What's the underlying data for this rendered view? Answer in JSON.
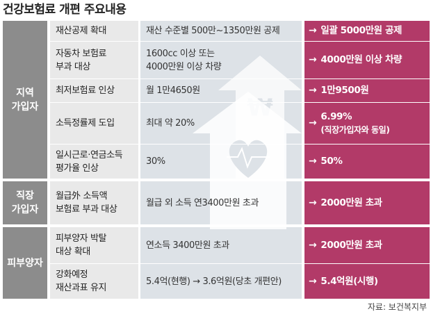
{
  "title": "건강보험료 개편 주요내용",
  "groups": [
    "지역\n가입자",
    "직장\n가입자",
    "피부양자"
  ],
  "rows": [
    {
      "item": "재산공제 확대",
      "current": "재산 수준별 500만~1350만원 공제",
      "new": "일괄 5000만원 공제"
    },
    {
      "item": "자동차 보험료\n부과 대상",
      "current": "1600cc 이상 또는\n4000만원 이상 차량",
      "new": "4000만원 이상 차량"
    },
    {
      "item": "최저보험료 인상",
      "current": "월 1만4650원",
      "new": "1만9500원"
    },
    {
      "item": "소득정률제 도입",
      "current": "최대 약 20%",
      "new": "6.99%",
      "new_sub": "(직장가입자와 동일)"
    },
    {
      "item": "일시근로·연금소득\n평가율 인상",
      "current": "30%",
      "new": "50%"
    },
    {
      "item": "월급外 소득액\n보험료 부과 대상",
      "current": "월급 외 소득 연3400만원 초과",
      "new": "2000만원 초과"
    },
    {
      "item": "피부양자 박탈\n대상 확대",
      "current": "연소득 3400만원 초과",
      "new": "2000만원 초과"
    },
    {
      "item": "강화예정\n재산과표 유지",
      "current": "5.4억(현행) → 3.6억원(당초 개편안)",
      "new": "5.4억원(시행)"
    }
  ],
  "arrow": "→",
  "source": "자료: 보건복지부",
  "colors": {
    "accent": "#b23a68",
    "group": "#8c8c8c",
    "item_bg": "#e9e9e9",
    "current_bg": "#dde2e7"
  },
  "icons": [
    "won-arrow-icon",
    "heart-house-icon"
  ]
}
